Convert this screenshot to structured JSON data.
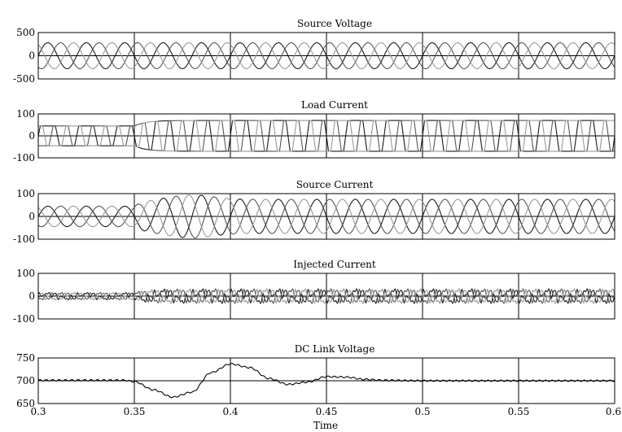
{
  "figure": {
    "xlabel": "Time",
    "xlim": [
      0.3,
      0.6
    ],
    "x_ticks": [
      "0.3",
      "0.35",
      "0.4",
      "0.45",
      "0.5",
      "0.55",
      "0.6"
    ]
  },
  "chart_data": [
    {
      "type": "line",
      "title": "Source Voltage",
      "xlabel": "Time",
      "ylabel": "",
      "xlim": [
        0.3,
        0.6
      ],
      "ylim": [
        -500,
        500
      ],
      "y_ticks": [
        "500",
        "0",
        "-500"
      ],
      "grid": true,
      "description_of_signal": "three-phase sinusoidal voltage, 50 Hz, amplitude about 280 V, constant over the interval",
      "series": [
        {
          "color": "#1a1a1a",
          "amplitude": 280,
          "frequency_hz": 50,
          "phase_deg": 0
        },
        {
          "color": "#555555",
          "amplitude": 280,
          "frequency_hz": 50,
          "phase_deg": -120
        },
        {
          "color": "#999999",
          "amplitude": 280,
          "frequency_hz": 50,
          "phase_deg": 120
        }
      ]
    },
    {
      "type": "line",
      "title": "Load Current",
      "xlim": [
        0.3,
        0.6
      ],
      "ylim": [
        -100,
        100
      ],
      "y_ticks": [
        "100",
        "0",
        "-100"
      ],
      "grid": true,
      "series": [
        {
          "color": "#1a1a1a",
          "waveform": "quasi-square",
          "frequency_hz": 50,
          "phase_deg": 0,
          "amplitude_before": 45,
          "amplitude_after": 70,
          "step_time": 0.35
        },
        {
          "color": "#555555",
          "waveform": "quasi-square",
          "frequency_hz": 50,
          "phase_deg": -120,
          "amplitude_before": 45,
          "amplitude_after": 70,
          "step_time": 0.35
        },
        {
          "color": "#999999",
          "waveform": "quasi-square",
          "frequency_hz": 50,
          "phase_deg": 120,
          "amplitude_before": 45,
          "amplitude_after": 70,
          "step_time": 0.35
        }
      ]
    },
    {
      "type": "line",
      "title": "Source Current",
      "xlim": [
        0.3,
        0.6
      ],
      "ylim": [
        -100,
        100
      ],
      "y_ticks": [
        "100",
        "0",
        "-100"
      ],
      "grid": true,
      "series": [
        {
          "color": "#1a1a1a",
          "waveform": "sine",
          "frequency_hz": 50,
          "phase_deg": 0,
          "amplitude_before": 45,
          "amplitude_after": 75,
          "step_time": 0.35,
          "overshoot_peak": 95,
          "overshoot_time": 0.38
        },
        {
          "color": "#555555",
          "waveform": "sine",
          "frequency_hz": 50,
          "phase_deg": -120,
          "amplitude_before": 45,
          "amplitude_after": 75,
          "step_time": 0.35,
          "overshoot_peak": 95,
          "overshoot_time": 0.38
        },
        {
          "color": "#999999",
          "waveform": "sine",
          "frequency_hz": 50,
          "phase_deg": 120,
          "amplitude_before": 45,
          "amplitude_after": 75,
          "step_time": 0.35,
          "overshoot_peak": 95,
          "overshoot_time": 0.38
        }
      ]
    },
    {
      "type": "line",
      "title": "Injected Current",
      "xlim": [
        0.3,
        0.6
      ],
      "ylim": [
        -100,
        100
      ],
      "y_ticks": [
        "100",
        "0",
        "-100"
      ],
      "grid": true,
      "series": [
        {
          "color": "#1a1a1a",
          "waveform": "harmonic",
          "frequency_hz": 50,
          "phase_deg": 0,
          "amplitude_before": 20,
          "amplitude_after": 40,
          "step_time": 0.35
        },
        {
          "color": "#555555",
          "waveform": "harmonic",
          "frequency_hz": 50,
          "phase_deg": -120,
          "amplitude_before": 20,
          "amplitude_after": 40,
          "step_time": 0.35
        },
        {
          "color": "#999999",
          "waveform": "harmonic",
          "frequency_hz": 50,
          "phase_deg": 120,
          "amplitude_before": 20,
          "amplitude_after": 40,
          "step_time": 0.35
        }
      ]
    },
    {
      "type": "line",
      "title": "DC Link Voltage",
      "xlabel": "Time",
      "xlim": [
        0.3,
        0.6
      ],
      "ylim": [
        650,
        750
      ],
      "y_ticks": [
        "750",
        "700",
        "650"
      ],
      "grid": true,
      "series": [
        {
          "color": "#000000",
          "ripple_amplitude": 1.5,
          "ripple_frequency_hz": 300,
          "x": [
            0.3,
            0.345,
            0.35,
            0.36,
            0.37,
            0.38,
            0.39,
            0.4,
            0.41,
            0.42,
            0.43,
            0.44,
            0.45,
            0.46,
            0.47,
            0.48,
            0.5,
            0.52,
            0.6
          ],
          "y": [
            701,
            701,
            698,
            680,
            664,
            675,
            718,
            737,
            729,
            705,
            692,
            697,
            709,
            708,
            703,
            701,
            700,
            700,
            700
          ]
        }
      ]
    }
  ]
}
